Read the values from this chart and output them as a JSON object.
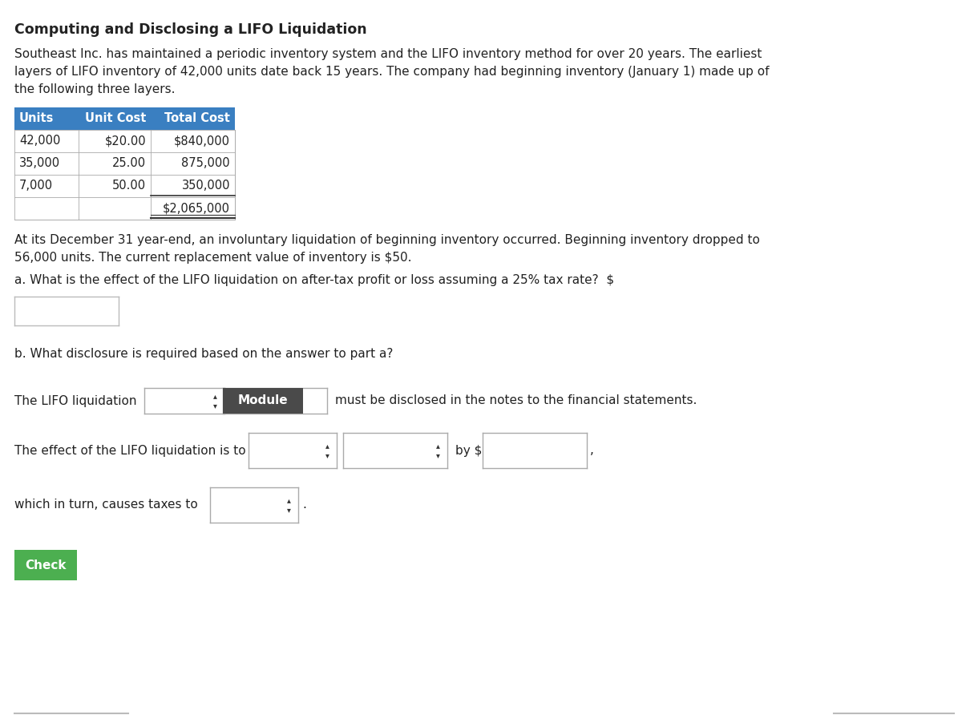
{
  "title": "Computing and Disclosing a LIFO Liquidation",
  "paragraph1_lines": [
    "Southeast Inc. has maintained a periodic inventory system and the LIFO inventory method for over 20 years. The earliest",
    "layers of LIFO inventory of 42,000 units date back 15 years. The company had beginning inventory (January 1) made up of",
    "the following three layers."
  ],
  "table_header": [
    "Units",
    "Unit Cost",
    "Total Cost"
  ],
  "table_rows": [
    [
      "42,000",
      "$20.00",
      "$840,000"
    ],
    [
      "35,000",
      "25.00",
      "875,000"
    ],
    [
      "7,000",
      "50.00",
      "350,000"
    ],
    [
      "",
      "",
      "$2,065,000"
    ]
  ],
  "paragraph2_lines": [
    "At its December 31 year-end, an involuntary liquidation of beginning inventory occurred. Beginning inventory dropped to",
    "56,000 units. The current replacement value of inventory is $50."
  ],
  "question_a": "a. What is the effect of the LIFO liquidation on after-tax profit or loss assuming a 25% tax rate?  $",
  "question_b": "b. What disclosure is required based on the answer to part a?",
  "line1_pre": "The LIFO liquidation",
  "line1_module": "Module",
  "line1_post": "must be disclosed in the notes to the financial statements.",
  "line2_pre": "The effect of the LIFO liquidation is to",
  "line2_post": "by $",
  "line3_pre": "which in turn, causes taxes to",
  "check_label": "Check",
  "bg_color": "#ffffff",
  "header_bg": "#3a7fc1",
  "header_fg": "#ffffff",
  "module_bg": "#4a4a4a",
  "module_fg": "#ffffff",
  "check_bg": "#4caf50",
  "check_fg": "#ffffff",
  "table_border": "#3a7fc1",
  "text_color": "#222222",
  "font_size_title": 12.5,
  "font_size_body": 11,
  "font_size_table": 10.5
}
